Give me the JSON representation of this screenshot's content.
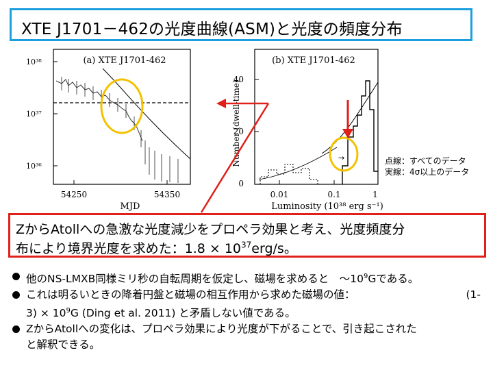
{
  "title": "XTE J1701－462の光度曲線(ASM)と光度の頻度分布",
  "figure": {
    "panel_a": {
      "label": "(a) XTE J1701-462",
      "y_ticks": [
        "10³⁸",
        "10³⁷",
        "10³⁶"
      ],
      "x_ticks": [
        "54250",
        "54350"
      ],
      "xlabel": "MJD"
    },
    "panel_b": {
      "label": "(b) XTE J1701-462",
      "y_ticks": [
        "40",
        "20",
        "0"
      ],
      "x_ticks": [
        "0.01",
        "0.1",
        "1"
      ],
      "xlabel": "Luminosity (10³⁸ erg s⁻¹)",
      "ylabel": "Number (dwell-time)"
    },
    "legend": {
      "dotted": "点線：すべてのデータ",
      "solid": "実線：4σ以上のデータ"
    }
  },
  "summary": {
    "line1": "ZからAtollへの急激な光度減少をプロペラ効果と考え、光度頻度分",
    "line2_text": "布により境界光度を求めた：1.8 × 10",
    "line2_sup": "37",
    "line2_unit": "erg/s。"
  },
  "bullets": [
    {
      "pre": "他のNS-LMXB同様ミリ秒の自転周期を仮定し、磁場を求めると　～10",
      "sup": "9",
      "post": "Gである。"
    },
    {
      "pre": "これは明るいときの降着円盤と磁場の相互作用から求めた磁場の値：",
      "right": "(1-",
      "cont": "3) × 10",
      "sup": "9",
      "post": "G (Ding et al. 2011) と矛盾しない値である。"
    },
    {
      "pre": "ZからAtollへの変化は、プロペラ効果により光度が下がることで、引き起こされた",
      "cont": "と解釈できる。"
    }
  ],
  "colors": {
    "title_border": "#1aa0e0",
    "summary_border": "#e0201a",
    "circle": "#f2c200",
    "arrow": "#e0201a"
  }
}
